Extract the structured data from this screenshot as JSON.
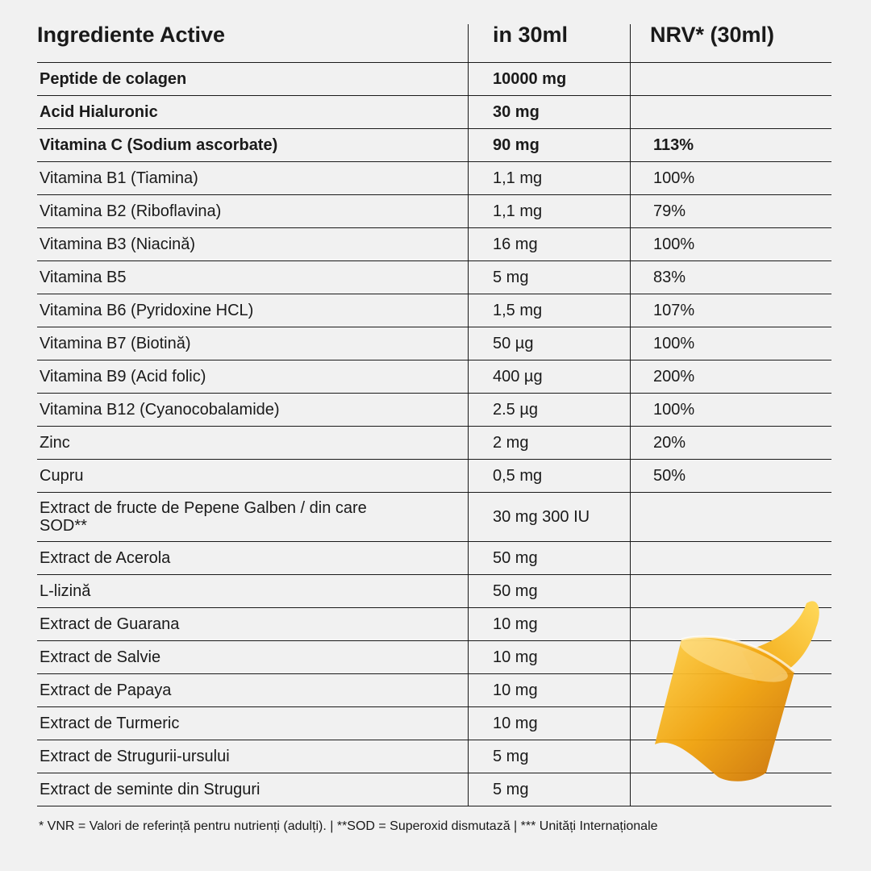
{
  "header": {
    "col1": "Ingrediente Active",
    "col2": "in 30ml",
    "col3": "NRV* (30ml)"
  },
  "rows": [
    {
      "name": "Peptide de colagen",
      "amount": "10000 mg",
      "nrv": "",
      "bold": true
    },
    {
      "name": "Acid Hialuronic",
      "amount": "30 mg",
      "nrv": "",
      "bold": true
    },
    {
      "name": "Vitamina C (Sodium ascorbate)",
      "amount": "90 mg",
      "nrv": "113%",
      "bold": true
    },
    {
      "name": "Vitamina B1 (Tiamina)",
      "amount": "1,1 mg",
      "nrv": "100%"
    },
    {
      "name": "Vitamina B2 (Riboflavina)",
      "amount": "1,1 mg",
      "nrv": "79%"
    },
    {
      "name": "Vitamina B3 (Niacină)",
      "amount": "16 mg",
      "nrv": "100%"
    },
    {
      "name": "Vitamina B5",
      "amount": "5 mg",
      "nrv": "83%"
    },
    {
      "name": "Vitamina B6 (Pyridoxine HCL)",
      "amount": "1,5 mg",
      "nrv": "107%"
    },
    {
      "name": "Vitamina B7 (Biotină)",
      "amount": "50 µg",
      "nrv": "100%"
    },
    {
      "name": "Vitamina B9 (Acid folic)",
      "amount": "400 µg",
      "nrv": "200%"
    },
    {
      "name": "Vitamina B12 (Cyanocobalamide)",
      "amount": "2.5 µg",
      "nrv": "100%"
    },
    {
      "name": "Zinc",
      "amount": "2 mg",
      "nrv": "20%"
    },
    {
      "name": "Cupru",
      "amount": "0,5 mg",
      "nrv": "50%"
    },
    {
      "name": "Extract de fructe de Pepene Galben / din care SOD**",
      "amount": "30 mg 300 IU",
      "nrv": "",
      "tall": true
    },
    {
      "name": "Extract de Acerola",
      "amount": "50 mg",
      "nrv": ""
    },
    {
      "name": "L-lizină",
      "amount": "50 mg",
      "nrv": ""
    },
    {
      "name": "Extract de Guarana",
      "amount": "10 mg",
      "nrv": ""
    },
    {
      "name": "Extract de Salvie",
      "amount": "10 mg",
      "nrv": ""
    },
    {
      "name": "Extract de Papaya",
      "amount": "10 mg",
      "nrv": ""
    },
    {
      "name": "Extract de Turmeric",
      "amount": "10 mg",
      "nrv": ""
    },
    {
      "name": "Extract de Strugurii-ursului",
      "amount": "5 mg",
      "nrv": ""
    },
    {
      "name": "Extract de seminte din Struguri",
      "amount": "5 mg",
      "nrv": ""
    }
  ],
  "footer": "* VNR = Valori de referință pentru nutrienți (adulți). | **SOD = Superoxid dismutază | *** Unități Internaționale",
  "colors": {
    "background": "#f1f1f1",
    "text": "#1a1a1a",
    "liquid": "#f0a20c"
  }
}
